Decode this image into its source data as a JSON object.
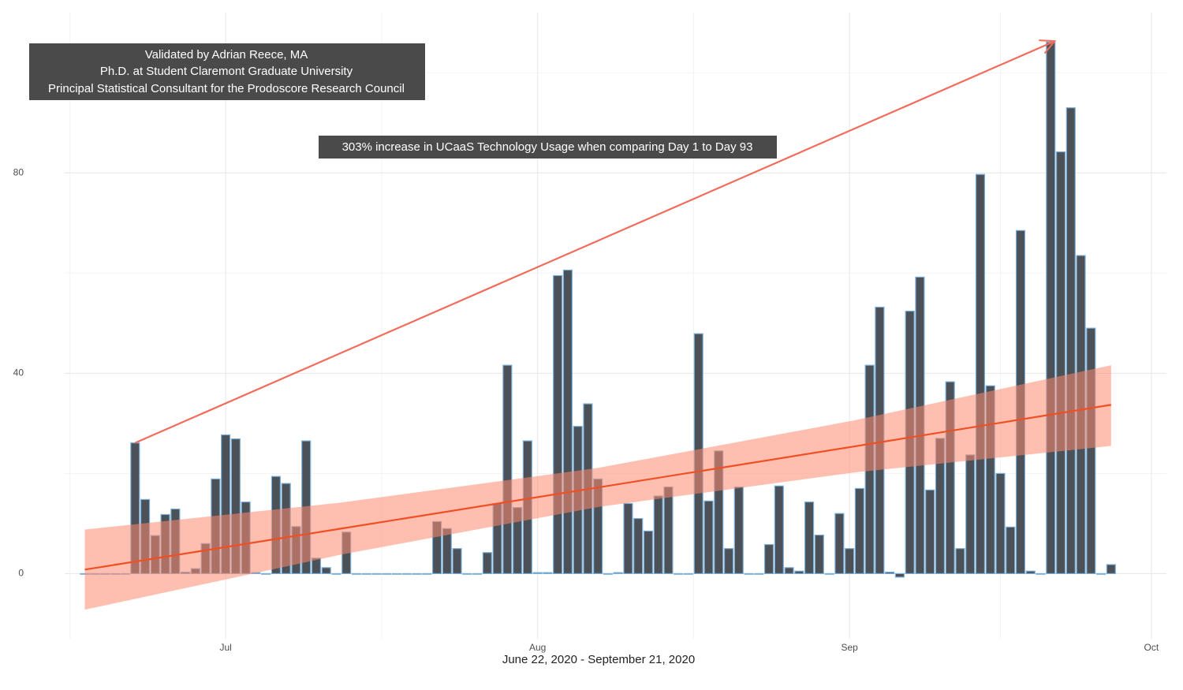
{
  "chart_data": {
    "type": "bar",
    "xlabel": "June 22, 2020 - September 21, 2020",
    "validation_note": [
      "Validated by Adrian Reece, MA",
      "Ph.D. at Student Claremont Graduate University",
      "Principal Statistical Consultant for the Prodoscore Research Council"
    ],
    "increase_note": "303% increase in UCaaS Technology Usage when comparing Day 1 to Day 93",
    "x": [
      -14,
      -13,
      -12,
      -11,
      -10,
      -9,
      -8,
      -7,
      -6,
      -5,
      -4,
      -3,
      -2,
      -1,
      0,
      1,
      2,
      3,
      4,
      5,
      6,
      7,
      8,
      9,
      10,
      11,
      12,
      13,
      14,
      15,
      16,
      17,
      18,
      19,
      20,
      21,
      22,
      23,
      24,
      25,
      26,
      27,
      28,
      29,
      30,
      31,
      32,
      33,
      34,
      35,
      36,
      37,
      38,
      39,
      40,
      41,
      42,
      43,
      44,
      45,
      46,
      47,
      48,
      49,
      50,
      51,
      52,
      53,
      54,
      55,
      56,
      57,
      58,
      59,
      60,
      61,
      62,
      63,
      64,
      65,
      66,
      67,
      68,
      69,
      70,
      71,
      72,
      73,
      74,
      75,
      76,
      77,
      78,
      79,
      80,
      81,
      82,
      83,
      84,
      85,
      86,
      87,
      88
    ],
    "values": [
      0,
      0,
      0,
      0,
      0,
      26.1,
      14.8,
      7.6,
      11.8,
      12.9,
      0.3,
      1,
      6,
      18.9,
      27.7,
      26.9,
      14.3,
      0.2,
      0,
      19.4,
      18,
      9.4,
      26.5,
      3.1,
      1.2,
      0,
      8.3,
      0,
      0,
      0,
      0,
      0,
      0,
      0,
      0,
      10.4,
      9,
      5,
      0,
      0,
      4.2,
      14,
      41.6,
      13.2,
      26.5,
      0.2,
      0.2,
      59.5,
      60.6,
      29.4,
      33.9,
      18.9,
      0,
      0.2,
      14,
      11,
      8.5,
      15.5,
      17.3,
      0,
      0,
      47.9,
      14.5,
      24.5,
      5,
      17.3,
      0,
      0,
      5.8,
      17.5,
      1.2,
      0.5,
      14.3,
      7.7,
      0,
      12,
      5,
      17,
      41.6,
      53.2,
      0.3,
      -0.7,
      52.4,
      59.2,
      16.7,
      27,
      38.3,
      5,
      23.7,
      79.7,
      37.5,
      20,
      9.3,
      68.5,
      0.5,
      0,
      106.1,
      84.2,
      93,
      63.5,
      49,
      0,
      1.8
    ],
    "color": "#4b5157",
    "edge_color": "#7bafd8",
    "trend": {
      "x": [
        -14,
        11.5,
        37,
        62.5,
        88
      ],
      "values": [
        0.8,
        9.0,
        17.2,
        25.4,
        33.7
      ],
      "upper": [
        8.8,
        14.2,
        21.1,
        30.6,
        41.6
      ],
      "lower": [
        -7.2,
        3.8,
        13.3,
        20.2,
        25.5
      ],
      "color": "#f04e23",
      "band_color": "#ff8a70"
    },
    "arrow": {
      "x": [
        -9,
        82.4
      ],
      "y": [
        26.1,
        106.3
      ],
      "color": "#f26b5b"
    },
    "xlim": [
      -16,
      93.5
    ],
    "xticks": [
      {
        "value": 0,
        "label": "Jul"
      },
      {
        "value": 31,
        "label": "Aug"
      },
      {
        "value": 62,
        "label": "Sep"
      },
      {
        "value": 92,
        "label": "Oct"
      }
    ],
    "ylim": [
      -13,
      112
    ],
    "yticks": [
      0,
      40,
      80
    ],
    "grid": true
  }
}
